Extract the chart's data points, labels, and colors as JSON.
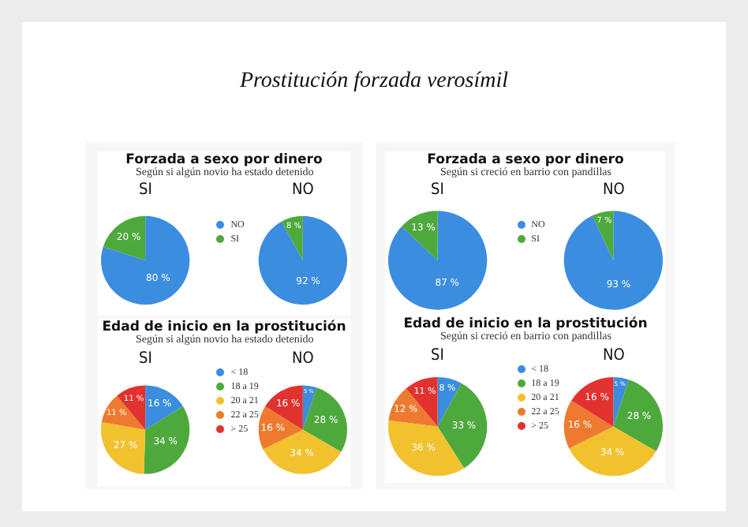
{
  "chart_data": [
    {
      "type": "other",
      "title": "Prostitución forzada verosímil"
    },
    {
      "type": "pie",
      "title": "Forzada a sexo por dinero",
      "subtitle": "Según si algún novio ha estado detenido",
      "categories": [
        "NO",
        "SI"
      ],
      "colors": [
        "#3b8de0",
        "#4ea93c"
      ],
      "legend": "right",
      "series": [
        {
          "name": "SI",
          "values": [
            80,
            20
          ],
          "value_labels": [
            "80 %",
            "20 %"
          ]
        },
        {
          "name": "NO",
          "values": [
            92,
            8
          ],
          "value_labels": [
            "92 %",
            "8 %"
          ]
        }
      ]
    },
    {
      "type": "pie",
      "title": "Forzada a sexo por dinero",
      "subtitle": "Según si creció en barrio con pandillas",
      "categories": [
        "NO",
        "SI"
      ],
      "colors": [
        "#3b8de0",
        "#4ea93c"
      ],
      "legend": "right",
      "series": [
        {
          "name": "SI",
          "values": [
            87,
            13
          ],
          "value_labels": [
            "87 %",
            "13 %"
          ]
        },
        {
          "name": "NO",
          "values": [
            93,
            7
          ],
          "value_labels": [
            "93 %",
            "7 %"
          ]
        }
      ]
    },
    {
      "type": "pie",
      "title": "Edad de inicio en la prostitución",
      "subtitle": "Según si algún novio ha estado detenido",
      "categories": [
        "< 18",
        "18 a 19",
        "20 a 21",
        "22 a 25",
        "> 25"
      ],
      "colors": [
        "#3b8de0",
        "#4ea93c",
        "#f2c12e",
        "#ee7a2f",
        "#e2322f"
      ],
      "legend": "right",
      "series": [
        {
          "name": "SI",
          "values": [
            16,
            34,
            27,
            11,
            11
          ],
          "value_labels": [
            "16 %",
            "34 %",
            "27 %",
            "11 %",
            "11 %"
          ]
        },
        {
          "name": "NO",
          "values": [
            5,
            28,
            34,
            16,
            16
          ],
          "value_labels": [
            "5 %",
            "28 %",
            "34 %",
            "16 %",
            "16 %"
          ]
        }
      ]
    },
    {
      "type": "pie",
      "title": "Edad de inicio en la prostitución",
      "subtitle": "Según si creció en barrio con pandillas",
      "categories": [
        "< 18",
        "18 a 19",
        "20 a 21",
        "22 a 25",
        "> 25"
      ],
      "colors": [
        "#3b8de0",
        "#4ea93c",
        "#f2c12e",
        "#ee7a2f",
        "#e2322f"
      ],
      "legend": "right",
      "series": [
        {
          "name": "SI",
          "values": [
            8,
            33,
            36,
            12,
            11
          ],
          "value_labels": [
            "8 %",
            "33 %",
            "36 %",
            "12 %",
            "11 %"
          ]
        },
        {
          "name": "NO",
          "values": [
            5,
            28,
            34,
            16,
            16
          ],
          "value_labels": [
            "5 %",
            "28 %",
            "34 %",
            "16 %",
            "16 %"
          ]
        }
      ]
    }
  ]
}
